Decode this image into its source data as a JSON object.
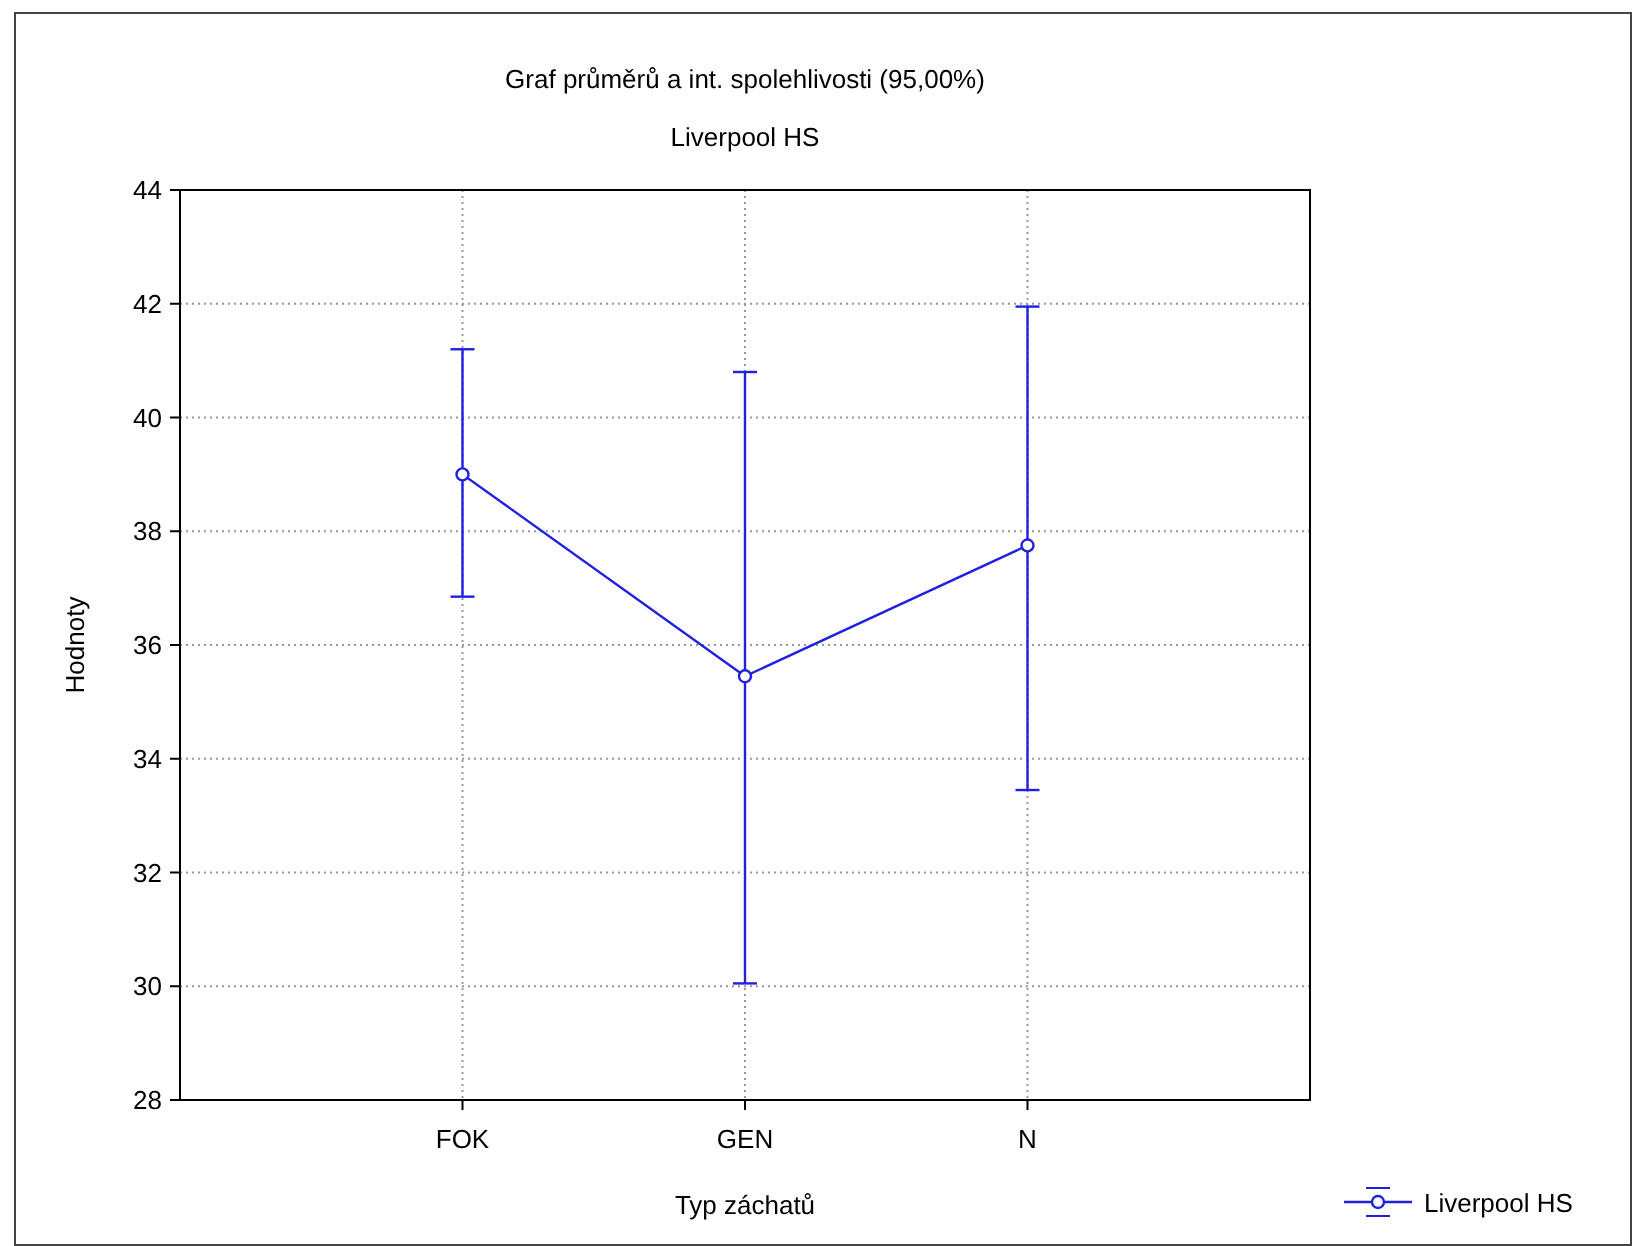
{
  "chart_data": {
    "type": "line",
    "title": "Graf průměrů a int. spolehlivosti (95,00%)",
    "subtitle": "Liverpool HS",
    "xlabel": "Typ záchatů",
    "ylabel": "Hodnoty",
    "categories": [
      "FOK",
      "GEN",
      "N"
    ],
    "series": [
      {
        "name": "Liverpool HS",
        "color": "#2020e0",
        "values": [
          39.0,
          35.45,
          37.75
        ],
        "errors": [
          [
            36.85,
            41.2
          ],
          [
            30.05,
            40.8
          ],
          [
            33.45,
            41.95
          ]
        ]
      }
    ],
    "ylim": [
      28,
      44
    ],
    "yticks": [
      28,
      30,
      32,
      34,
      36,
      38,
      40,
      42,
      44
    ],
    "grid": true,
    "legend": "bottom right",
    "marker": "circle",
    "line_style": "solid"
  }
}
